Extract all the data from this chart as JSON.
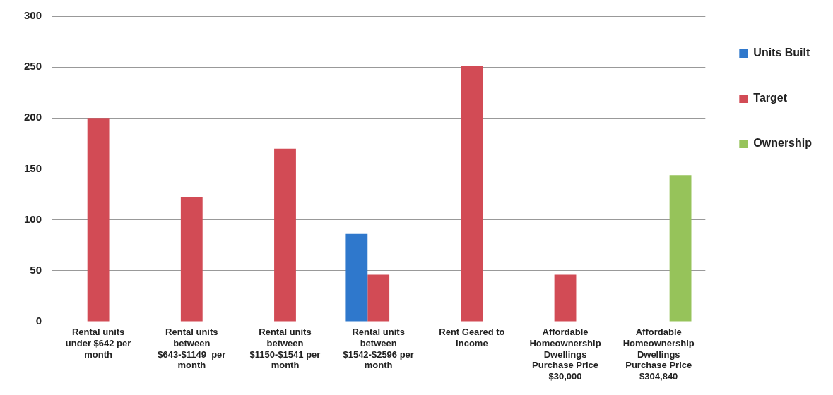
{
  "chart_data": {
    "type": "bar",
    "categories": [
      "Rental units under $642 per month",
      "Rental units between $643-$1149  per month",
      "Rental units between $1150-$1541 per month",
      "Rental units between $1542-$2596 per month",
      "Rent Geared to Income",
      "Affordable Homeownership Dwellings Purchase Price $30,000",
      "Affordable Homeownership Dwellings Purchase Price $304,840"
    ],
    "series": [
      {
        "name": "Units Built",
        "color": "#2f78cc",
        "values": [
          null,
          null,
          null,
          86,
          null,
          null,
          null
        ]
      },
      {
        "name": "Target",
        "color": "#d24b55",
        "values": [
          200,
          122,
          170,
          46,
          251,
          46,
          null
        ]
      },
      {
        "name": "Ownership",
        "color": "#96c35a",
        "values": [
          null,
          null,
          null,
          null,
          null,
          null,
          144
        ]
      }
    ],
    "ylim": [
      0,
      300
    ],
    "yticks": [
      0,
      50,
      100,
      150,
      200,
      250,
      300
    ],
    "grid": "y",
    "legend": "right"
  }
}
